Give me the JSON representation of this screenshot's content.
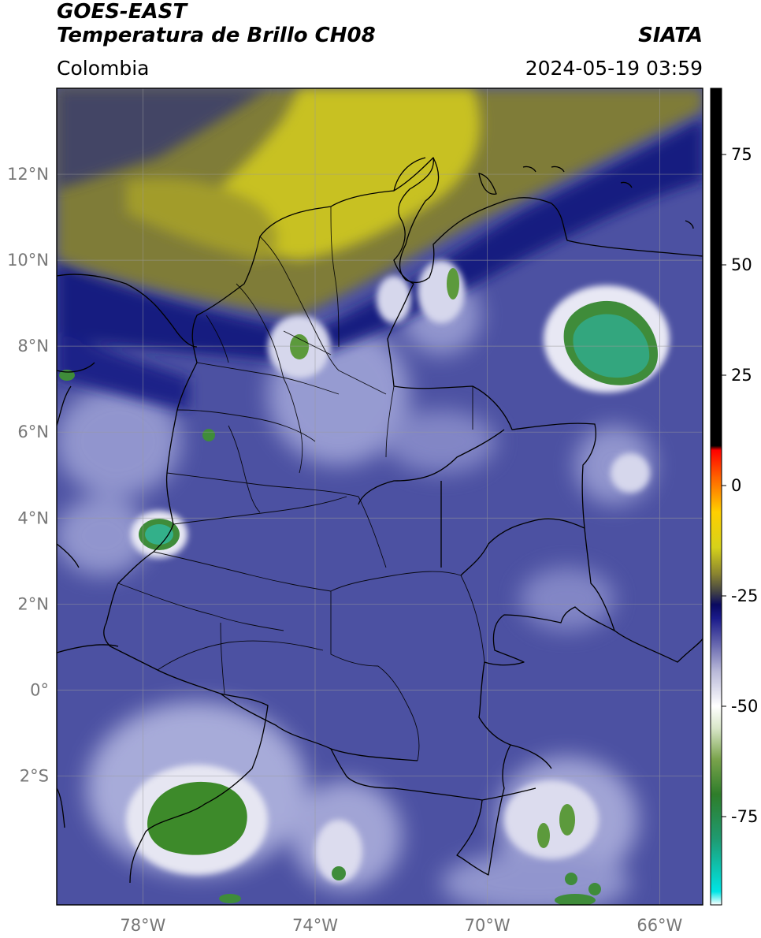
{
  "header": {
    "title_line1": "GOES-EAST",
    "title_line2": "Temperatura de Brillo CH08",
    "region": "Colombia",
    "source": "SIATA",
    "datetime": "2024-05-19 03:59"
  },
  "map": {
    "lat_labels": [
      "12°N",
      "10°N",
      "8°N",
      "6°N",
      "4°N",
      "2°N",
      "0°",
      "2°S"
    ],
    "lat_values": [
      12,
      10,
      8,
      6,
      4,
      2,
      0,
      -2
    ],
    "lon_labels": [
      "78°W",
      "74°W",
      "70°W",
      "66°W"
    ],
    "lon_values": [
      -78,
      -74,
      -70,
      -66
    ],
    "extent": {
      "lon_min": -80,
      "lon_max": -65,
      "lat_min": -5,
      "lat_max": 14
    },
    "colors": {
      "background_blue": "#4a4fa0",
      "deep_blue": "#0e1578",
      "olive_dry": "#7d7a35",
      "yellow_dry": "#c9c21e",
      "cloud_white": "#e6e6f2",
      "cold_green": "#3d8a2a",
      "coldest_teal": "#33b08a",
      "border": "#000000",
      "grid": "#9a9a9a"
    }
  },
  "colorbar": {
    "ticks": [
      "75",
      "50",
      "25",
      "0",
      "-25",
      "-50",
      "-75"
    ],
    "tick_values": [
      75,
      50,
      25,
      0,
      -25,
      -50,
      -75
    ],
    "range": [
      -95,
      90
    ],
    "stops": [
      {
        "v": -95,
        "c": "#ffffff"
      },
      {
        "v": -92,
        "c": "#00e5e5"
      },
      {
        "v": -80,
        "c": "#1f9a70"
      },
      {
        "v": -70,
        "c": "#2e7d2a"
      },
      {
        "v": -62,
        "c": "#7aa34c"
      },
      {
        "v": -55,
        "c": "#d8e6c8"
      },
      {
        "v": -50,
        "c": "#ffffff"
      },
      {
        "v": -42,
        "c": "#b8b8d8"
      },
      {
        "v": -35,
        "c": "#5a5aa8"
      },
      {
        "v": -30,
        "c": "#1a1a8a"
      },
      {
        "v": -27,
        "c": "#0a0a60"
      },
      {
        "v": -24,
        "c": "#444444"
      },
      {
        "v": -20,
        "c": "#8a8430"
      },
      {
        "v": -14,
        "c": "#d6d21a"
      },
      {
        "v": -6,
        "c": "#ffd000"
      },
      {
        "v": 2,
        "c": "#ff6000"
      },
      {
        "v": 8,
        "c": "#ff0000"
      },
      {
        "v": 9,
        "c": "#000000"
      },
      {
        "v": 90,
        "c": "#000000"
      }
    ]
  }
}
